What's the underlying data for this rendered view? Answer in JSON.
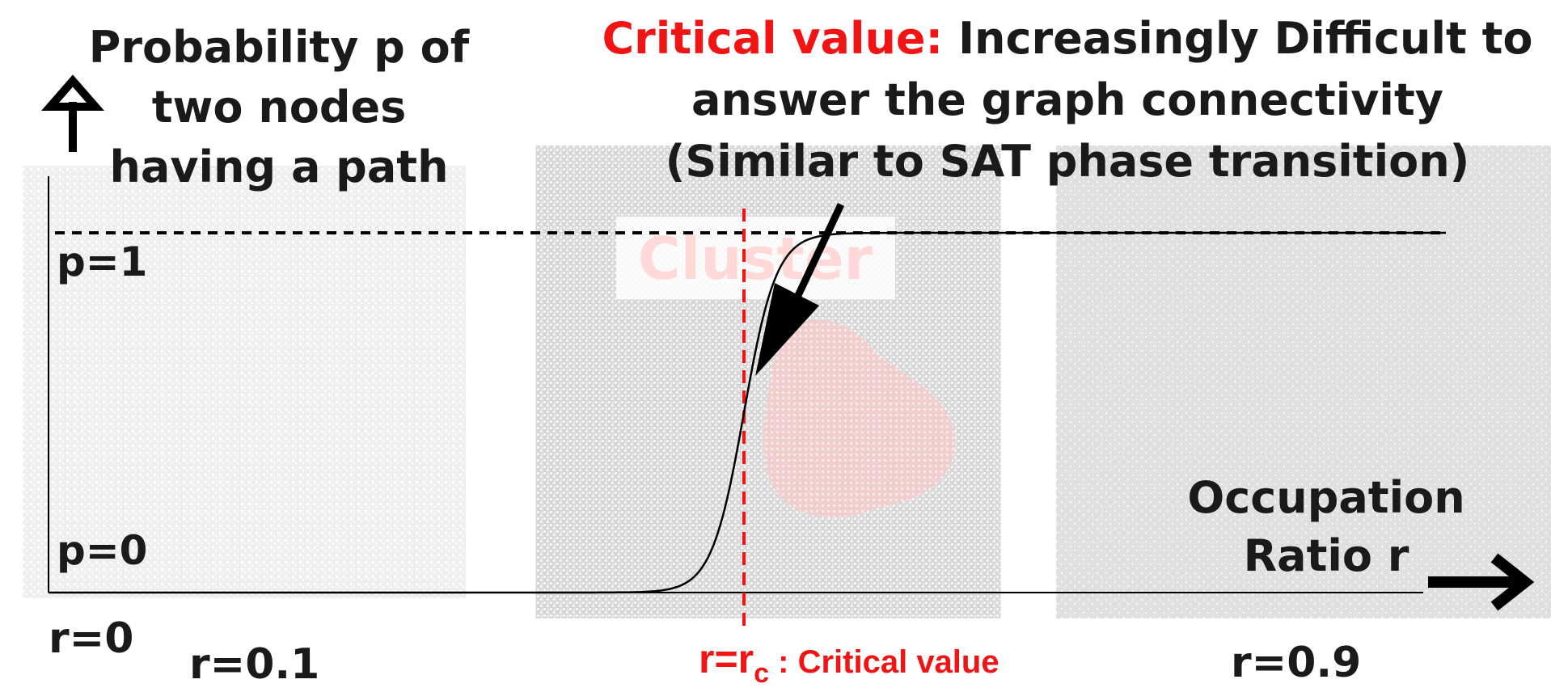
{
  "y_axis_label": [
    "Probability p of",
    "two nodes",
    "having a path"
  ],
  "x_axis_label": [
    "Occupation",
    "Ratio r"
  ],
  "critical_annotation": {
    "prefix": "Critical value:",
    "lines": [
      "Increasingly Difficult to",
      "answer the graph connectivity",
      "(Similar to SAT phase transition)"
    ]
  },
  "p_labels": {
    "p1": "p=1",
    "p0": "p=0"
  },
  "r_labels": {
    "r0": "r=0",
    "r01": "r=0.1",
    "r09": "r=0.9"
  },
  "rc_label": {
    "r": "r=r",
    "sub": "c",
    "suffix": " : Critical value"
  },
  "background_watermark": "Cluster",
  "colors": {
    "critical": "#f01414",
    "text": "#1a1a1a",
    "panel": "#d9d9d9",
    "cluster": "#ffd2d2"
  },
  "icons": [
    "up-arrow-icon",
    "right-arrow-icon",
    "pointer-arrow-icon"
  ],
  "chart_data": {
    "type": "line",
    "curve": "sigmoid",
    "y_values": [
      0,
      1
    ],
    "x_ticks": [
      "r=0",
      "r=0.1",
      "r=r_c",
      "r=0.9"
    ],
    "reference_lines": [
      {
        "y": 1,
        "style": "dashed"
      },
      {
        "x": "r_c",
        "style": "dashed",
        "color": "#f01414"
      }
    ]
  }
}
